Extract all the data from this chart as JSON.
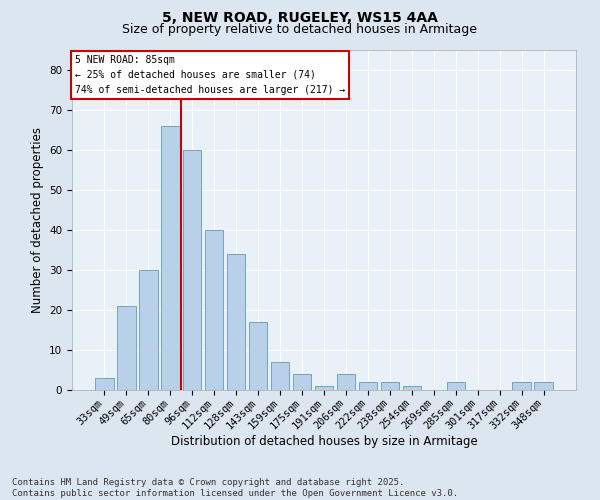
{
  "title1": "5, NEW ROAD, RUGELEY, WS15 4AA",
  "title2": "Size of property relative to detached houses in Armitage",
  "xlabel": "Distribution of detached houses by size in Armitage",
  "ylabel": "Number of detached properties",
  "categories": [
    "33sqm",
    "49sqm",
    "65sqm",
    "80sqm",
    "96sqm",
    "112sqm",
    "128sqm",
    "143sqm",
    "159sqm",
    "175sqm",
    "191sqm",
    "206sqm",
    "222sqm",
    "238sqm",
    "254sqm",
    "269sqm",
    "285sqm",
    "301sqm",
    "317sqm",
    "332sqm",
    "348sqm"
  ],
  "values": [
    3,
    21,
    30,
    66,
    60,
    40,
    34,
    17,
    7,
    4,
    1,
    4,
    2,
    2,
    1,
    0,
    2,
    0,
    0,
    2,
    2
  ],
  "bar_color": "#b8d0e8",
  "bar_edge_color": "#6699bb",
  "vline_x": 3.5,
  "vline_color": "#cc0000",
  "ylim": [
    0,
    85
  ],
  "yticks": [
    0,
    10,
    20,
    30,
    40,
    50,
    60,
    70,
    80
  ],
  "annotation_text": "5 NEW ROAD: 85sqm\n← 25% of detached houses are smaller (74)\n74% of semi-detached houses are larger (217) →",
  "annotation_box_color": "#ffffff",
  "annotation_box_edge": "#cc0000",
  "footer": "Contains HM Land Registry data © Crown copyright and database right 2025.\nContains public sector information licensed under the Open Government Licence v3.0.",
  "bg_color": "#dce6f0",
  "plot_bg_color": "#e8f0f8",
  "grid_color": "#ffffff",
  "title_fontsize": 10,
  "subtitle_fontsize": 9,
  "tick_fontsize": 7.5,
  "label_fontsize": 8.5,
  "footer_fontsize": 6.5
}
